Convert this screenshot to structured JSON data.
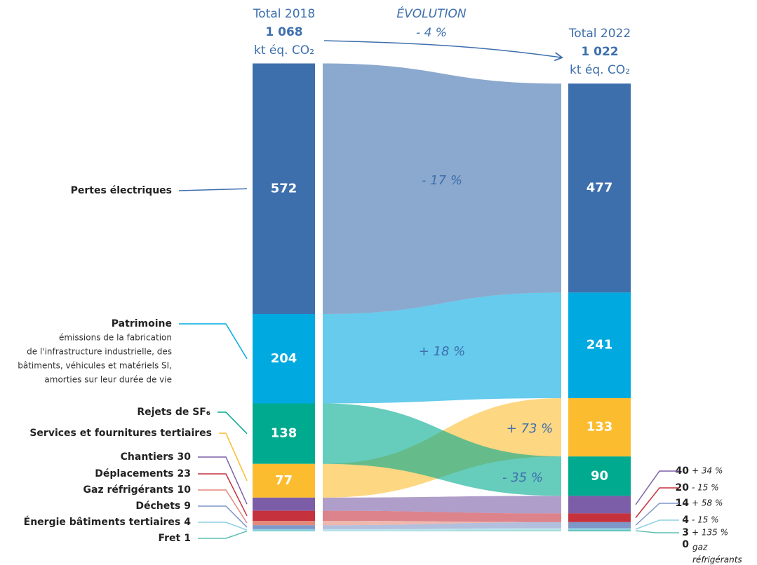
{
  "chart_data": {
    "type": "sankey",
    "left_header": {
      "title": "Total 2018",
      "total": {
        "value": 1068,
        "label": "1 068"
      },
      "unit": "kt éq. CO₂"
    },
    "right_header": {
      "title": "Total 2022",
      "total": {
        "value": 1022,
        "label": "1 022"
      },
      "unit": "kt éq. CO₂"
    },
    "evolution": {
      "title": "ÉVOLUTION",
      "change": {
        "value": -4,
        "label": "- 4 %"
      }
    },
    "items": [
      {
        "name": "Pertes électriques",
        "color": "#3d6fad",
        "v2018": 572,
        "v2022": 477,
        "change": {
          "value": -17,
          "label": "- 17 %"
        }
      },
      {
        "name": "Patrimoine",
        "description": [
          "émissions de la fabrication",
          "de l'infrastructure industrielle, des",
          "bâtiments, véhicules et matériels SI,",
          "amorties sur leur durée de vie"
        ],
        "color": "#00a9e0",
        "v2018": 204,
        "v2022": 241,
        "change": {
          "value": 18,
          "label": "+ 18 %"
        }
      },
      {
        "name": "Rejets de SF₆",
        "color": "#00aa8f",
        "v2018": 138,
        "v2022": 90,
        "change": {
          "value": -35,
          "label": "- 35 %"
        }
      },
      {
        "name": "Services et fournitures tertiaires",
        "color": "#fbbc2f",
        "v2018": 77,
        "v2022": 133,
        "change": {
          "value": 73,
          "label": "+ 73 %"
        }
      },
      {
        "name": "Chantiers",
        "color": "#7b5ea7",
        "v2018": 30,
        "v2022": 40,
        "change": {
          "value": 34,
          "label": "+ 34 %"
        }
      },
      {
        "name": "Déplacements",
        "color": "#c6313e",
        "v2018": 23,
        "v2022": 20,
        "change": {
          "value": -15,
          "label": "- 15 %"
        }
      },
      {
        "name": "Gaz réfrigérants",
        "color": "#e3897a",
        "v2018": 10,
        "v2022": 0,
        "note": [
          "gaz",
          "réfrigérants"
        ]
      },
      {
        "name": "Déchets",
        "color": "#7f96c8",
        "v2018": 9,
        "v2022": 14,
        "change": {
          "value": 58,
          "label": "+ 58 %"
        }
      },
      {
        "name": "Énergie bâtiments tertiaires",
        "color": "#8fd1e2",
        "v2018": 4,
        "v2022": 4,
        "change": {
          "value": -15,
          "label": "- 15 %"
        }
      },
      {
        "name": "Fret",
        "color": "#5cc0b1",
        "v2018": 1,
        "v2022": 3,
        "change": {
          "value": 135,
          "label": "+ 135 %"
        }
      }
    ]
  }
}
